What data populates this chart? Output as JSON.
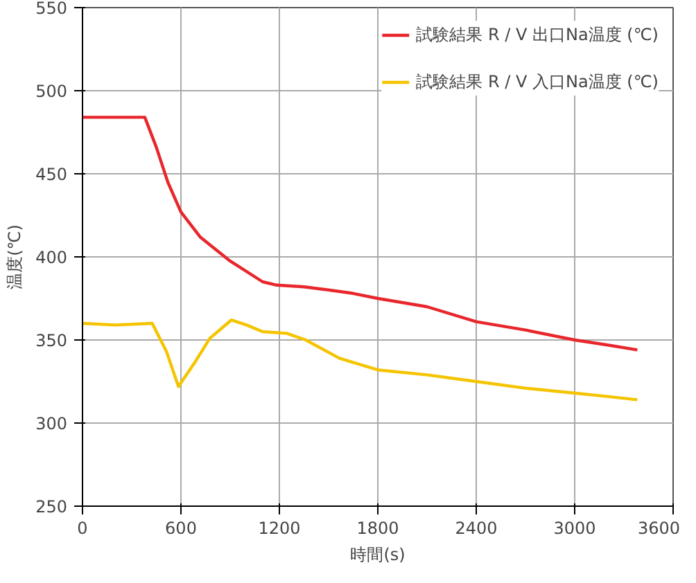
{
  "chart_data": {
    "type": "line",
    "xlabel": "時間(s)",
    "ylabel": "温度(℃)",
    "xlim": [
      0,
      3600
    ],
    "xticks": [
      0,
      600,
      1200,
      1800,
      2400,
      3000,
      3600
    ],
    "ylim": [
      250,
      550
    ],
    "yticks": [
      250,
      300,
      350,
      400,
      450,
      500,
      550
    ],
    "grid": true,
    "legend": "top right",
    "line_style": "solid",
    "marker": "none",
    "series": [
      {
        "name": "試験結果 R / V 出口Na温度 (℃)",
        "color": "#e8262b",
        "x": [
          0,
          200,
          380,
          450,
          520,
          600,
          717,
          893,
          1098,
          1185,
          1350,
          1507,
          1650,
          1800,
          2100,
          2400,
          2700,
          3000,
          3200,
          3382
        ],
        "values": [
          484,
          484,
          484,
          466,
          445,
          427,
          412,
          398,
          385,
          383,
          382,
          380,
          378,
          375,
          370,
          361,
          356,
          350,
          347,
          344
        ]
      },
      {
        "name": "試験結果 R / V 入口Na温度 (℃)",
        "color": "#f5c400",
        "x": [
          0,
          200,
          425,
          512,
          585,
          688,
          776,
          907,
          1000,
          1098,
          1244,
          1361,
          1566,
          1800,
          2100,
          2400,
          2700,
          3000,
          3200,
          3382
        ],
        "values": [
          360,
          359,
          360,
          343,
          322,
          337,
          351,
          362,
          359,
          355,
          354,
          350,
          339,
          332,
          329,
          325,
          321,
          318,
          316,
          314
        ]
      }
    ]
  }
}
